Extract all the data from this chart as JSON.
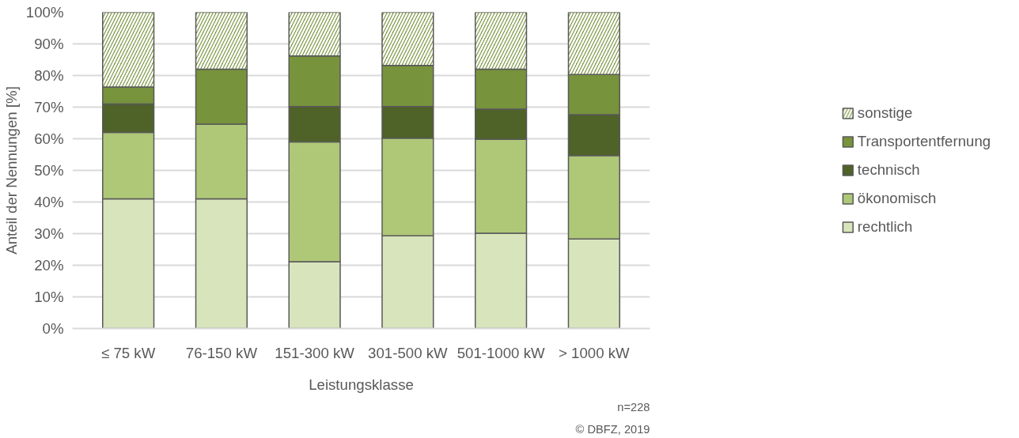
{
  "chart_data": {
    "type": "bar",
    "stacked": true,
    "xlabel": "Leistungsklasse",
    "ylabel": "Anteil der Nennungen [%]",
    "categories": [
      "≤ 75 kW",
      "76-150 kW",
      "151-300 kW",
      "301-500 kW",
      "501-1000 kW",
      "> 1000 kW"
    ],
    "series": [
      {
        "name": "rechtlich",
        "color": "#d8e4bc",
        "values": [
          41,
          41,
          21.1,
          29.3,
          30.1,
          28.3
        ]
      },
      {
        "name": "ökonomisch",
        "color": "#aec878",
        "values": [
          21,
          23.6,
          37.9,
          30.9,
          29.7,
          26.4
        ]
      },
      {
        "name": "technisch",
        "color": "#4f6228",
        "values": [
          9,
          0,
          11.2,
          10,
          9.6,
          12.9
        ]
      },
      {
        "name": "Transportentfernung",
        "color": "#77933c",
        "values": [
          5.4,
          17.4,
          16,
          13,
          12.6,
          12.7
        ]
      },
      {
        "name": "sonstige",
        "color": "#77933c",
        "values": [
          23.6,
          18,
          13.8,
          16.8,
          18,
          19.7
        ]
      }
    ],
    "ylim": [
      0,
      100
    ],
    "yticks": [
      {
        "value": 0,
        "label": "0%"
      },
      {
        "value": 10,
        "label": "10%"
      },
      {
        "value": 20,
        "label": "20%"
      },
      {
        "value": 30,
        "label": "30%"
      },
      {
        "value": 40,
        "label": "40%"
      },
      {
        "value": 50,
        "label": "50%"
      },
      {
        "value": 60,
        "label": "60%"
      },
      {
        "value": 70,
        "label": "70%"
      },
      {
        "value": 80,
        "label": "80%"
      },
      {
        "value": 90,
        "label": "90%"
      },
      {
        "value": 100,
        "label": "100%"
      }
    ],
    "grid": "y",
    "legend": "right",
    "annotations": [
      "n=228",
      "© DBFZ, 2019"
    ]
  }
}
